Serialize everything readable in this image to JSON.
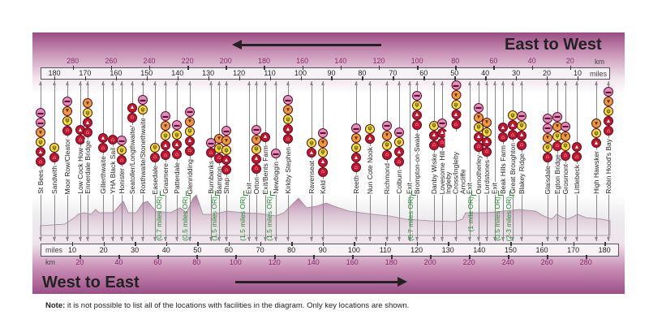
{
  "header": {
    "title": "East to West"
  },
  "footer": {
    "title": "West to East"
  },
  "scale": {
    "miles_label": "miles",
    "km_label": "km",
    "miles_ticks": [
      10,
      20,
      30,
      40,
      50,
      60,
      70,
      80,
      90,
      100,
      110,
      120,
      130,
      140,
      150,
      160,
      170,
      180
    ],
    "km_ticks": [
      20,
      40,
      60,
      80,
      100,
      120,
      140,
      160,
      180,
      200,
      220,
      240,
      260,
      280
    ]
  },
  "icon_types": {
    "bus": "bus/taxi-icon",
    "shop": "shop-icon",
    "food": "food-icon",
    "tent": "campsite-icon",
    "house": "accommodation-icon"
  },
  "colors": {
    "bus": "#e58cc0",
    "shop": "#ee9a3c",
    "food": "#f1e23a",
    "tent": "#c4142e",
    "house": "#c4142e",
    "detour": "#1e8a2e",
    "panel": "#9a4c84"
  },
  "locations": [
    {
      "name": "St Bees",
      "icons": [
        "bus",
        "bus",
        "shop",
        "food",
        "tent",
        "house"
      ]
    },
    {
      "name": "Sandwith",
      "icons": [
        "food",
        "house"
      ]
    },
    {
      "name": "Moor Row/Cleator",
      "icons": [
        "bus",
        "shop",
        "food",
        "house"
      ]
    },
    {
      "name": "Low Cock How",
      "icons": [
        "tent",
        "house"
      ]
    },
    {
      "name": "Ennerdale Bridge",
      "icons": [
        "shop",
        "food",
        "tent",
        "house"
      ]
    },
    {
      "name": "Gillerthwaite",
      "icons": [
        "tent",
        "house"
      ]
    },
    {
      "name": "YHA Black Sail",
      "icons": [
        "house"
      ]
    },
    {
      "name": "Honister",
      "icons": [
        "bus",
        "food",
        "house"
      ]
    },
    {
      "name": "Seatoller/Longthwaite/",
      "icons": [
        "tent",
        "house"
      ]
    },
    {
      "name": "Rosthwaite/Stonethwaite",
      "icons": [
        "bus",
        "food"
      ]
    },
    {
      "name": "Easedale",
      "icons": [
        "food",
        "house"
      ]
    },
    {
      "name": "Grasmere",
      "icons": [
        "bus",
        "shop",
        "food",
        "tent",
        "house"
      ]
    },
    {
      "name": "Patterdale",
      "icons": [
        "bus",
        "food",
        "tent",
        "house"
      ]
    },
    {
      "name": "Glenridding",
      "icons": [
        "bus",
        "shop",
        "food",
        "tent",
        "house"
      ]
    },
    {
      "name": "Burnbanks",
      "icons": [
        "bus",
        "house"
      ]
    },
    {
      "name": "Bampton",
      "icons": [
        "shop",
        "food",
        "house"
      ]
    },
    {
      "name": "Shap",
      "icons": [
        "bus",
        "shop",
        "food",
        "tent",
        "house"
      ]
    },
    {
      "name": "Exit",
      "icons": []
    },
    {
      "name": "Orton",
      "icons": [
        "bus",
        "shop",
        "food",
        "tent",
        "house"
      ]
    },
    {
      "name": "Exit/Bents Farm",
      "icons": [
        "tent"
      ]
    },
    {
      "name": "Newbiggin",
      "icons": [
        "bus"
      ]
    },
    {
      "name": "Kirkby Stephen",
      "icons": [
        "bus",
        "shop",
        "food",
        "tent",
        "house"
      ]
    },
    {
      "name": "Ravenseat",
      "icons": [
        "food",
        "tent"
      ]
    },
    {
      "name": "Keld",
      "icons": [
        "bus",
        "shop",
        "food",
        "tent",
        "house"
      ]
    },
    {
      "name": "Reeth",
      "icons": [
        "bus",
        "shop",
        "food",
        "tent",
        "house"
      ]
    },
    {
      "name": "Nun Cote Nook",
      "icons": [
        "food",
        "tent"
      ]
    },
    {
      "name": "Richmond",
      "icons": [
        "bus",
        "shop",
        "food",
        "house"
      ]
    },
    {
      "name": "Colburn",
      "icons": [
        "bus",
        "food",
        "tent",
        "house"
      ]
    },
    {
      "name": "Exit",
      "icons": []
    },
    {
      "name": "Brompton-on-Swale",
      "icons": [
        "bus",
        "food",
        "tent",
        "house"
      ]
    },
    {
      "name": "Danby Wiske",
      "icons": [
        "food",
        "tent",
        "house"
      ]
    },
    {
      "name": "Lovesome Hill",
      "icons": [
        "bus",
        "tent",
        "house"
      ]
    },
    {
      "name": "Ingleby Cross/Ingleby Arncliffe",
      "icons": [
        "bus",
        "shop",
        "food",
        "tent",
        "house"
      ]
    },
    {
      "name": "Exit",
      "icons": []
    },
    {
      "name": "Osmotherley",
      "icons": [
        "bus",
        "shop",
        "food",
        "tent",
        "house"
      ]
    },
    {
      "name": "Lordstones",
      "icons": [
        "shop",
        "food",
        "tent",
        "house"
      ]
    },
    {
      "name": "Exit",
      "icons": []
    },
    {
      "name": "Beak Hills Farm",
      "icons": [
        "tent",
        "house"
      ]
    },
    {
      "name": "Great Broughton",
      "icons": [
        "food",
        "tent",
        "house"
      ]
    },
    {
      "name": "Blakey Ridge",
      "icons": [
        "bus",
        "food",
        "tent",
        "house"
      ]
    },
    {
      "name": "Glaisdale",
      "icons": [
        "bus",
        "bus",
        "shop",
        "food",
        "house"
      ]
    },
    {
      "name": "Egton Bridge",
      "icons": [
        "bus",
        "shop",
        "food",
        "house"
      ]
    },
    {
      "name": "Grosmont",
      "icons": [
        "bus",
        "shop",
        "food",
        "house"
      ]
    },
    {
      "name": "Littlebeck",
      "icons": [
        "tent",
        "house"
      ]
    },
    {
      "name": "High Hawsker",
      "icons": [
        "shop",
        "food",
        "tent"
      ]
    },
    {
      "name": "Robin Hood's Bay",
      "icons": [
        "bus",
        "shop",
        "food",
        "tent",
        "house"
      ]
    }
  ],
  "detours": [
    "(0.7 miles OR)",
    "(0.5 miles OR)",
    "(1.5 miles OR)",
    "(1.5 miles OR)",
    "(1.5 miles OR)",
    "(0.7 miles OR)",
    "(1 mile OR)",
    "(0.5 miles OR)",
    "(2-3 miles OR)"
  ],
  "note": {
    "label": "Note:",
    "text": " it is not possible to list all of the locations with facilities in the diagram. Only key locations are shown."
  }
}
